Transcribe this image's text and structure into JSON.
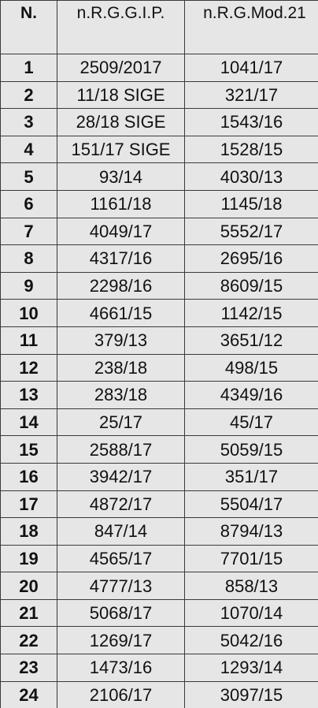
{
  "table": {
    "headers": [
      "N.",
      "n.R.G.G.I.P.",
      "n.R.G.Mod.21"
    ],
    "rows": [
      [
        "1",
        "2509/2017",
        "1041/17"
      ],
      [
        "2",
        "11/18 SIGE",
        "321/17"
      ],
      [
        "3",
        "28/18 SIGE",
        "1543/16"
      ],
      [
        "4",
        "151/17 SIGE",
        "1528/15"
      ],
      [
        "5",
        "93/14",
        "4030/13"
      ],
      [
        "6",
        "1161/18",
        "1145/18"
      ],
      [
        "7",
        "4049/17",
        "5552/17"
      ],
      [
        "8",
        "4317/16",
        "2695/16"
      ],
      [
        "9",
        "2298/16",
        "8609/15"
      ],
      [
        "10",
        "4661/15",
        "1142/15"
      ],
      [
        "11",
        "379/13",
        "3651/12"
      ],
      [
        "12",
        "238/18",
        "498/15"
      ],
      [
        "13",
        "283/18",
        "4349/16"
      ],
      [
        "14",
        "25/17",
        "45/17"
      ],
      [
        "15",
        "2588/17",
        "5059/15"
      ],
      [
        "16",
        "3942/17",
        "351/17"
      ],
      [
        "17",
        "4872/17",
        "5504/17"
      ],
      [
        "18",
        "847/14",
        "8794/13"
      ],
      [
        "19",
        "4565/17",
        "7701/15"
      ],
      [
        "20",
        "4777/13",
        "858/13"
      ],
      [
        "21",
        "5068/17",
        "1070/14"
      ],
      [
        "22",
        "1269/17",
        "5042/16"
      ],
      [
        "23",
        "1473/16",
        "1293/14"
      ],
      [
        "24",
        "2106/17",
        "3097/15"
      ]
    ]
  },
  "colors": {
    "background": "#e6e6e6",
    "border": "#3a3a3a",
    "text": "#111111"
  }
}
